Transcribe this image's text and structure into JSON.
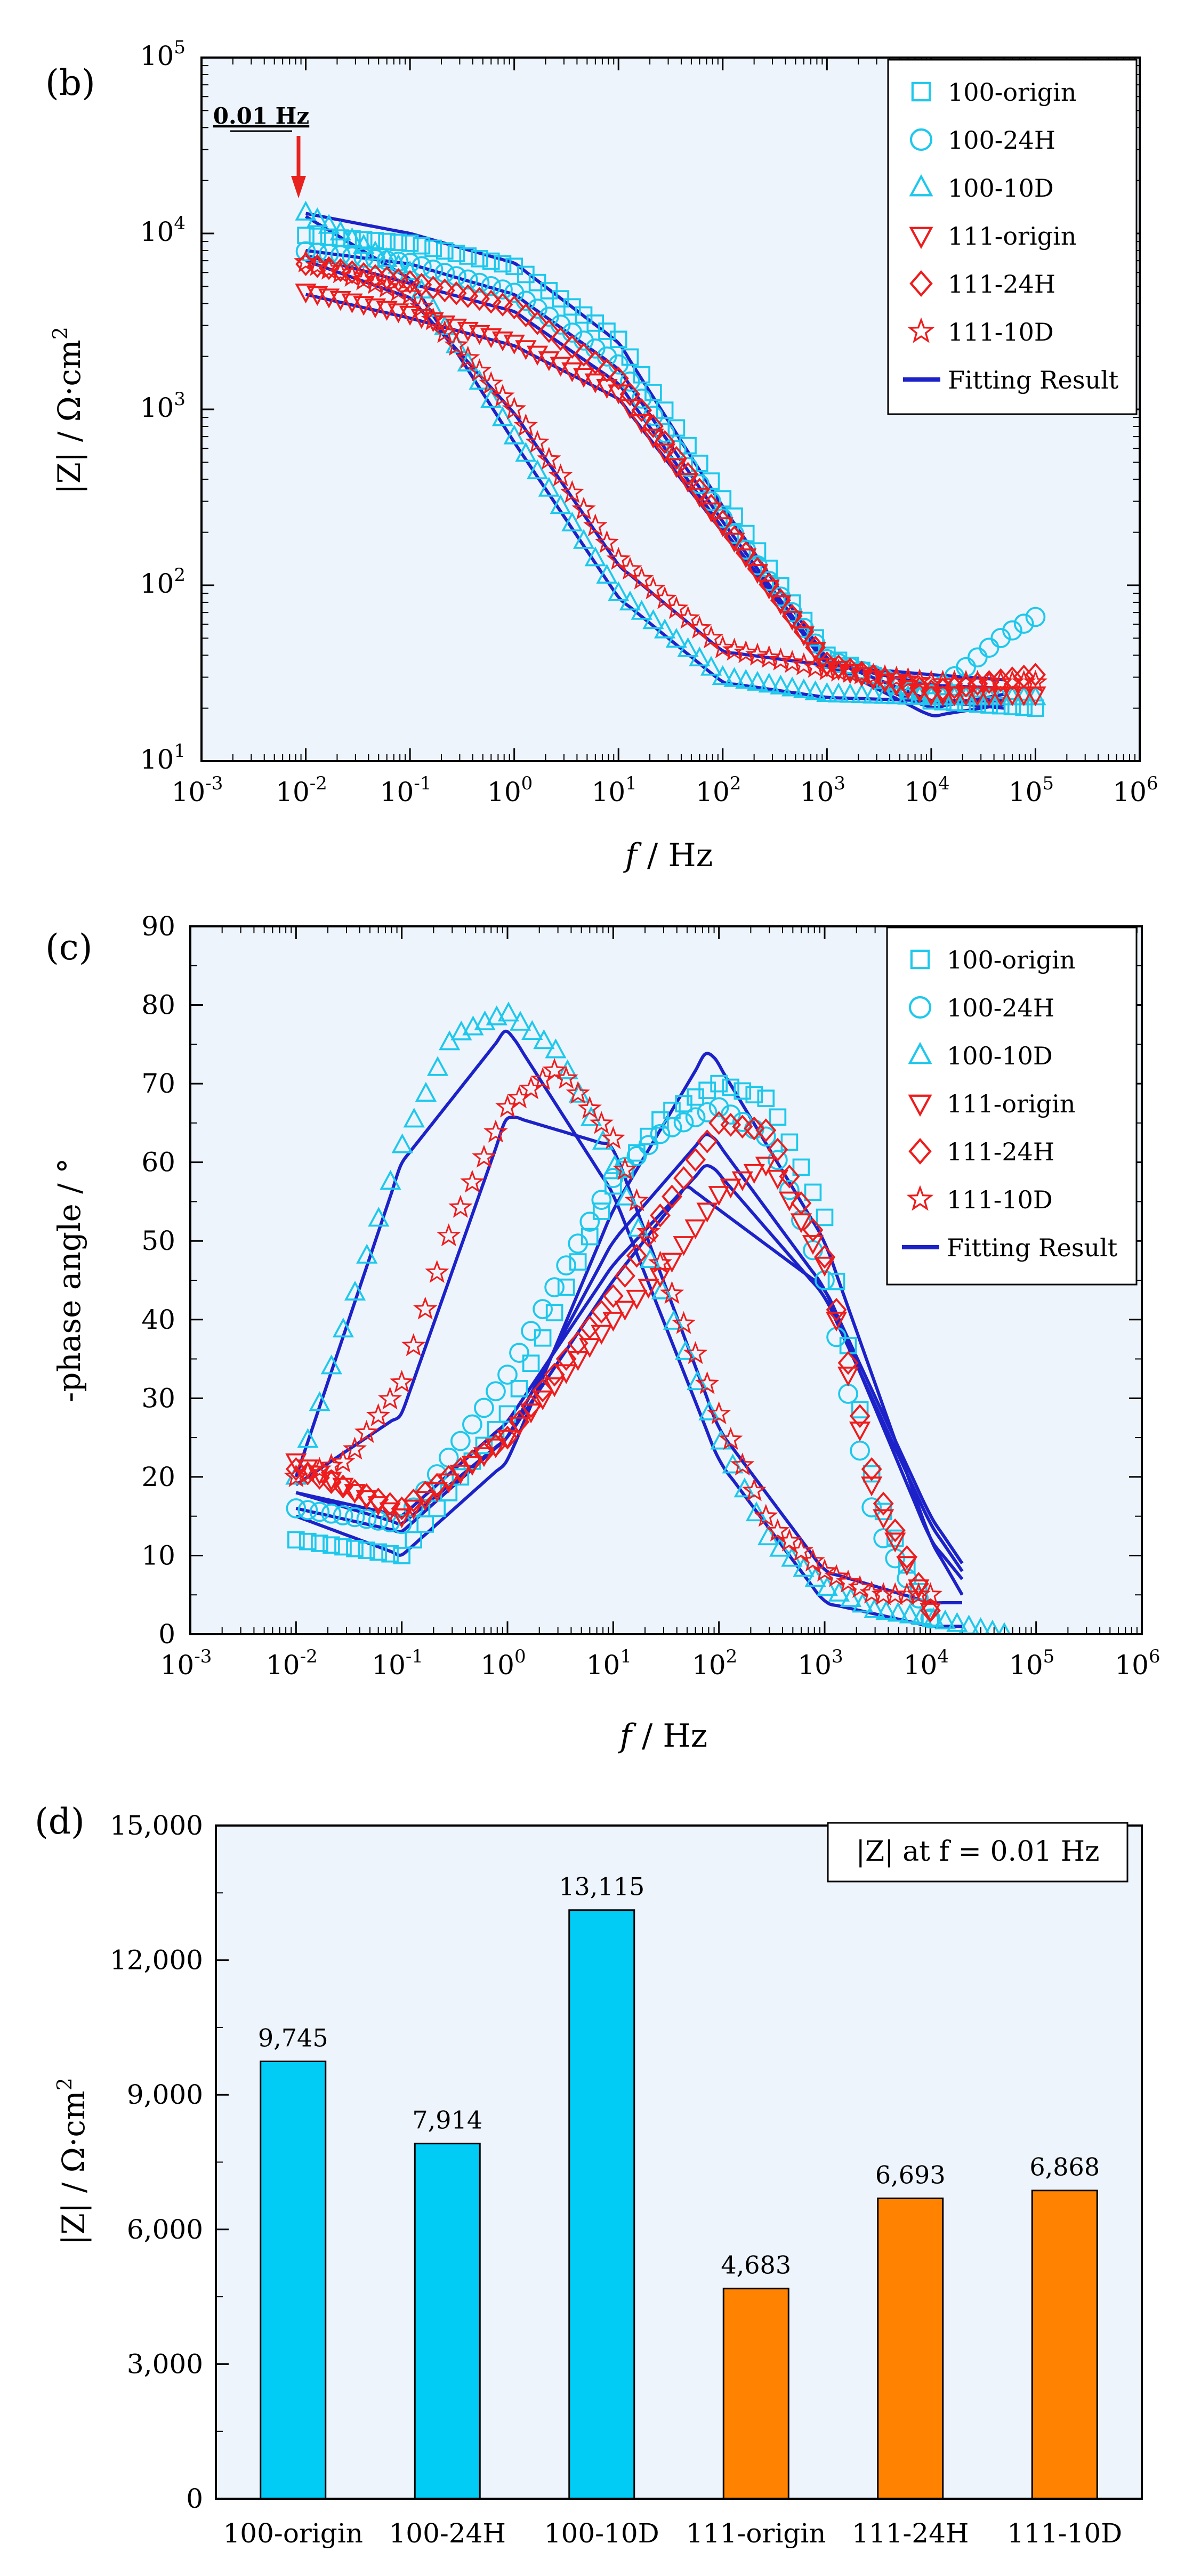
{
  "colors": {
    "cyan": "#1ec8ec",
    "red": "#ee1c1c",
    "fit": "#1c22c8",
    "bar_cyan": "#00ccf5",
    "bar_orange": "#ff8200",
    "panel_bg": "#eef4fb",
    "arrow": "#e8221e"
  },
  "chart_data": [
    {
      "id": "b",
      "type": "scatter",
      "panel_label": "(b)",
      "title": "",
      "xlabel": "f / Hz",
      "ylabel": "|Z| / Ω·cm²",
      "xscale": "log",
      "yscale": "log",
      "xlim_exp": [
        -3,
        6
      ],
      "ylim_exp": [
        1,
        5
      ],
      "x_tick_labels": [
        "10-3",
        "10-2",
        "10-1",
        "100",
        "101",
        "102",
        "103",
        "104",
        "105",
        "106"
      ],
      "y_tick_labels": [
        "101",
        "102",
        "103",
        "104",
        "105"
      ],
      "annotation": "0.01 Hz",
      "legend": [
        "100-origin",
        "100-24H",
        "100-10D",
        "111-origin",
        "111-24H",
        "111-10D",
        "Fitting Result"
      ],
      "legend_position": "top-right",
      "series": [
        {
          "name": "100-origin",
          "marker": "square",
          "color": "cyan",
          "f": [
            0.01,
            0.1,
            1,
            10,
            100,
            1000,
            10000,
            100000
          ],
          "z": [
            9745,
            8800,
            6500,
            2500,
            310,
            40,
            22,
            20
          ]
        },
        {
          "name": "100-24H",
          "marker": "circle",
          "color": "cyan",
          "f": [
            0.01,
            0.1,
            1,
            10,
            100,
            1000,
            10000,
            20000,
            50000,
            100000
          ],
          "z": [
            7914,
            6800,
            4600,
            1800,
            240,
            38,
            24,
            33,
            52,
            66
          ]
        },
        {
          "name": "100-10D",
          "marker": "triangle-up",
          "color": "cyan",
          "f": [
            0.01,
            0.1,
            1,
            10,
            100,
            1000,
            10000,
            100000
          ],
          "z": [
            13115,
            6000,
            700,
            90,
            30,
            24,
            23,
            23
          ]
        },
        {
          "name": "111-origin",
          "marker": "triangle-down",
          "color": "red",
          "f": [
            0.01,
            0.1,
            1,
            10,
            100,
            1000,
            10000,
            100000
          ],
          "z": [
            4683,
            3500,
            2400,
            1250,
            220,
            35,
            24,
            24
          ]
        },
        {
          "name": "111-24H",
          "marker": "diamond",
          "color": "red",
          "f": [
            0.01,
            0.1,
            1,
            10,
            100,
            1000,
            10000,
            100000
          ],
          "z": [
            6693,
            5300,
            3800,
            1500,
            230,
            36,
            25,
            31
          ]
        },
        {
          "name": "111-10D",
          "marker": "star",
          "color": "red",
          "f": [
            0.01,
            0.1,
            1,
            10,
            100,
            1000,
            10000,
            100000
          ],
          "z": [
            6868,
            4500,
            1000,
            140,
            44,
            33,
            28,
            28
          ]
        }
      ],
      "fits": [
        {
          "name": "100-origin fit",
          "f": [
            0.01,
            0.1,
            1,
            10,
            100,
            1000,
            10000,
            50000
          ],
          "z": [
            13000,
            10000,
            6800,
            2400,
            280,
            38,
            22,
            20
          ]
        },
        {
          "name": "100-24H fit",
          "f": [
            0.01,
            0.1,
            1,
            10,
            100,
            1000,
            10000,
            50000
          ],
          "z": [
            8000,
            6700,
            4500,
            1700,
            230,
            36,
            18,
            21
          ]
        },
        {
          "name": "100-10D fit",
          "f": [
            0.01,
            0.1,
            1,
            10,
            100,
            1000,
            10000,
            50000
          ],
          "z": [
            12500,
            5500,
            650,
            85,
            28,
            23,
            22,
            22
          ]
        },
        {
          "name": "111-origin fit",
          "f": [
            0.01,
            0.1,
            1,
            10,
            100,
            1000,
            10000,
            50000
          ],
          "z": [
            4500,
            3300,
            2300,
            1150,
            200,
            36,
            27,
            26
          ]
        },
        {
          "name": "111-24H fit",
          "f": [
            0.01,
            0.1,
            1,
            10,
            100,
            1000,
            10000,
            50000
          ],
          "z": [
            7500,
            5200,
            3600,
            1400,
            210,
            35,
            20,
            24
          ]
        },
        {
          "name": "111-10D fit",
          "f": [
            0.01,
            0.1,
            1,
            10,
            100,
            1000,
            10000,
            50000
          ],
          "z": [
            7000,
            4300,
            950,
            130,
            42,
            35,
            31,
            29
          ]
        }
      ]
    },
    {
      "id": "c",
      "type": "scatter",
      "panel_label": "(c)",
      "title": "",
      "xlabel": "f / Hz",
      "ylabel": "-phase angle / °",
      "xscale": "log",
      "xlim_exp": [
        -3,
        6
      ],
      "ylim": [
        0,
        90
      ],
      "x_tick_labels": [
        "10-3",
        "10-2",
        "10-1",
        "100",
        "101",
        "102",
        "103",
        "104",
        "105",
        "106"
      ],
      "y_tick_labels": [
        "0",
        "10",
        "20",
        "30",
        "40",
        "50",
        "60",
        "70",
        "80",
        "90"
      ],
      "legend": [
        "100-origin",
        "100-24H",
        "100-10D",
        "111-origin",
        "111-24H",
        "111-10D",
        "Fitting Result"
      ],
      "legend_position": "top-right",
      "series": [
        {
          "name": "100-origin",
          "marker": "square",
          "color": "cyan",
          "f": [
            0.01,
            0.1,
            1,
            10,
            30,
            100,
            300,
            1000,
            3000,
            10000
          ],
          "phase": [
            12,
            10,
            28,
            57,
            66,
            70,
            68,
            53,
            18,
            2
          ]
        },
        {
          "name": "100-24H",
          "marker": "circle",
          "color": "cyan",
          "f": [
            0.01,
            0.1,
            1,
            10,
            30,
            100,
            300,
            1000,
            3000,
            10000
          ],
          "phase": [
            16,
            14,
            33,
            58,
            64,
            67,
            63,
            45,
            14,
            2
          ]
        },
        {
          "name": "100-10D",
          "marker": "triangle-up",
          "color": "cyan",
          "f": [
            0.01,
            0.03,
            0.1,
            0.3,
            1,
            3,
            10,
            30,
            100,
            300,
            1000,
            3000,
            10000,
            50000
          ],
          "phase": [
            20,
            40,
            62,
            76,
            79,
            74,
            60,
            43,
            25,
            12,
            6,
            3,
            2,
            0
          ]
        },
        {
          "name": "111-origin",
          "marker": "triangle-down",
          "color": "red",
          "f": [
            0.01,
            0.1,
            1,
            10,
            30,
            100,
            300,
            1000,
            3000,
            10000
          ],
          "phase": [
            22,
            15,
            25,
            40,
            46,
            56,
            60,
            47,
            17,
            3
          ]
        },
        {
          "name": "111-24H",
          "marker": "diamond",
          "color": "red",
          "f": [
            0.01,
            0.1,
            1,
            10,
            30,
            100,
            300,
            1000,
            3000,
            10000
          ],
          "phase": [
            21,
            16,
            25,
            43,
            54,
            65,
            64,
            48,
            19,
            3
          ]
        },
        {
          "name": "111-10D",
          "marker": "star",
          "color": "red",
          "f": [
            0.01,
            0.03,
            0.1,
            0.3,
            1,
            3,
            10,
            30,
            100,
            300,
            1000,
            3000,
            10000
          ],
          "phase": [
            20,
            22,
            32,
            52,
            67,
            72,
            63,
            46,
            28,
            14,
            8,
            5,
            5
          ]
        }
      ],
      "fits": [
        {
          "name": "100-origin fit",
          "f": [
            0.01,
            0.1,
            1,
            10,
            80,
            1000,
            10000,
            20000
          ],
          "phase": [
            15,
            10,
            22,
            54,
            74.5,
            50,
            12,
            5
          ]
        },
        {
          "name": "100-24H fit",
          "f": [
            0.01,
            0.1,
            1,
            10,
            80,
            1000,
            10000,
            20000
          ],
          "phase": [
            16,
            13,
            25,
            50,
            64,
            44,
            12,
            7
          ]
        },
        {
          "name": "100-10D fit",
          "f": [
            0.01,
            0.1,
            1,
            10,
            100,
            1000,
            10000,
            20000
          ],
          "phase": [
            20,
            60,
            77,
            56,
            22,
            4,
            1,
            1
          ]
        },
        {
          "name": "111-origin fit",
          "f": [
            0.01,
            0.1,
            1,
            10,
            50,
            1000,
            10000,
            20000
          ],
          "phase": [
            18,
            14,
            25,
            45,
            57,
            44,
            15,
            9
          ]
        },
        {
          "name": "111-24H fit",
          "f": [
            0.01,
            0.1,
            1,
            10,
            80,
            1000,
            10000,
            20000
          ],
          "phase": [
            18,
            15,
            27,
            47,
            60,
            43,
            14,
            8
          ]
        },
        {
          "name": "111-10D fit",
          "f": [
            0.01,
            0.1,
            1,
            10,
            100,
            1000,
            10000,
            20000
          ],
          "phase": [
            19,
            28,
            66,
            62,
            26,
            8,
            4,
            4
          ]
        }
      ]
    },
    {
      "id": "d",
      "type": "bar",
      "panel_label": "(d)",
      "title": "|Z| at f = 0.01 Hz",
      "xlabel": "",
      "ylabel": "|Z| / Ω·cm²",
      "ylim": [
        0,
        15000
      ],
      "y_tick_labels": [
        "0",
        "3,000",
        "6,000",
        "9,000",
        "12,000",
        "15,000"
      ],
      "categories": [
        "100-origin",
        "100-24H",
        "100-10D",
        "111-origin",
        "111-24H",
        "111-10D"
      ],
      "values": [
        9745,
        7914,
        13115,
        4683,
        6693,
        6868
      ],
      "value_labels": [
        "9,745",
        "7,914",
        "13,115",
        "4,683",
        "6,693",
        "6,868"
      ],
      "bar_colors": [
        "bar_cyan",
        "bar_cyan",
        "bar_cyan",
        "bar_orange",
        "bar_orange",
        "bar_orange"
      ]
    }
  ]
}
